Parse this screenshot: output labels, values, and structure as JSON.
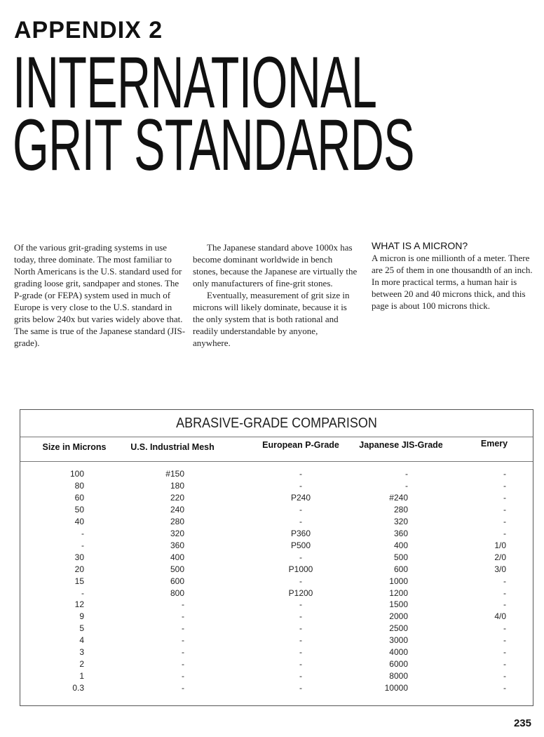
{
  "header": {
    "appendix": "APPENDIX 2",
    "title_line1": "INTERNATIONAL",
    "title_line2": "GRIT STANDARDS"
  },
  "columns": {
    "col1": [
      "Of the various grit-grading systems in use today, three dominate. The most familiar to North Americans is the U.S. standard used for grading loose grit, sandpaper and stones. The P-grade (or FEPA) system used in much of Europe is very close to the U.S. standard in grits below 240x but varies widely above that. The same is true of the Japanese standard (JIS-grade)."
    ],
    "col2": [
      "The Japanese standard above 1000x has become dominant worldwide in bench stones, because the Japanese are virtually the only manufacturers of fine-grit stones.",
      "Eventually, measurement of grit size in microns will likely dominate, because it is the only system that is both rational and readily understandable by anyone, anywhere."
    ],
    "sidebar": {
      "heading": "WHAT IS A MICRON?",
      "text": "A micron is one millionth of a meter. There are 25 of them in one thousandth of an inch. In more practical terms, a human hair is between 20 and 40 microns thick, and this page is about 100 microns thick."
    }
  },
  "table": {
    "title": "ABRASIVE-GRADE COMPARISON",
    "headers": [
      "Size in Microns",
      "U.S. Industrial Mesh",
      "European P-Grade",
      "Japanese JIS-Grade",
      "Emery"
    ],
    "rows": [
      [
        "100",
        "#150",
        "-",
        "-",
        "-"
      ],
      [
        "80",
        "180",
        "-",
        "-",
        "-"
      ],
      [
        "60",
        "220",
        "P240",
        "#240",
        "-"
      ],
      [
        "50",
        "240",
        "-",
        "280",
        "-"
      ],
      [
        "40",
        "280",
        "-",
        "320",
        "-"
      ],
      [
        "-",
        "320",
        "P360",
        "360",
        "-"
      ],
      [
        "-",
        "360",
        "P500",
        "400",
        "1/0"
      ],
      [
        "30",
        "400",
        "-",
        "500",
        "2/0"
      ],
      [
        "20",
        "500",
        "P1000",
        "600",
        "3/0"
      ],
      [
        "15",
        "600",
        "-",
        "1000",
        "-"
      ],
      [
        "-",
        "800",
        "P1200",
        "1200",
        "-"
      ],
      [
        "12",
        "-",
        "-",
        "1500",
        "-"
      ],
      [
        "9",
        "-",
        "-",
        "2000",
        "4/0"
      ],
      [
        "5",
        "-",
        "-",
        "2500",
        "-"
      ],
      [
        "4",
        "-",
        "-",
        "3000",
        "-"
      ],
      [
        "3",
        "-",
        "-",
        "4000",
        "-"
      ],
      [
        "2",
        "-",
        "-",
        "6000",
        "-"
      ],
      [
        "1",
        "-",
        "-",
        "8000",
        "-"
      ],
      [
        "0.3",
        "-",
        "-",
        "10000",
        "-"
      ]
    ]
  },
  "page_number": "235"
}
